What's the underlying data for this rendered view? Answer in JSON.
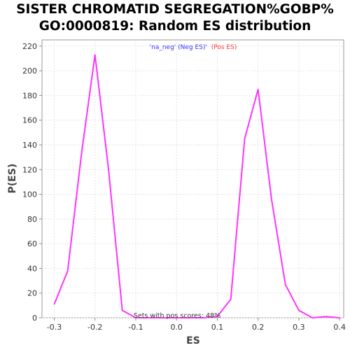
{
  "chart_data": {
    "type": "line",
    "title_line1": "SISTER CHROMATID SEGREGATION%GOBP%",
    "title_line2": "GO:0000819: Random ES distribution",
    "xlabel": "ES",
    "ylabel": "P(ES)",
    "xlim": [
      -0.33,
      0.41
    ],
    "ylim": [
      0,
      225
    ],
    "x_ticks": [
      -0.3,
      -0.2,
      -0.1,
      0.0,
      0.1,
      0.2,
      0.3,
      0.4
    ],
    "x_tick_labels": [
      "-0.3",
      "-0.2",
      "-0.1",
      "0.0",
      "0.1",
      "0.2",
      "0.3",
      "0.4"
    ],
    "y_ticks": [
      0,
      20,
      40,
      60,
      80,
      100,
      120,
      140,
      160,
      180,
      200,
      220
    ],
    "y_tick_labels": [
      "0",
      "20",
      "40",
      "60",
      "80",
      "100",
      "120",
      "140",
      "160",
      "180",
      "200",
      "220"
    ],
    "grid": true,
    "legend": {
      "placement": "top-center",
      "neg_label": "'na_neg' (Neg ES)'",
      "pos_label": "(Pos ES)",
      "neg_color": "#3333ff",
      "pos_color": "#ff3333"
    },
    "annotation": "Sets with pos scores: 48%",
    "series": [
      {
        "color": "#ff33ff",
        "x": [
          -0.3,
          -0.267,
          -0.233,
          -0.2,
          -0.167,
          -0.133,
          -0.1,
          -0.067,
          -0.033,
          0.0,
          0.033,
          0.067,
          0.1,
          0.133,
          0.167,
          0.2,
          0.233,
          0.267,
          0.3,
          0.333,
          0.367,
          0.4
        ],
        "y": [
          11,
          38,
          133,
          213,
          121,
          6,
          0,
          0,
          0,
          0,
          0,
          0,
          1,
          15,
          145,
          185,
          96,
          27,
          6,
          0,
          1,
          0
        ]
      }
    ]
  }
}
